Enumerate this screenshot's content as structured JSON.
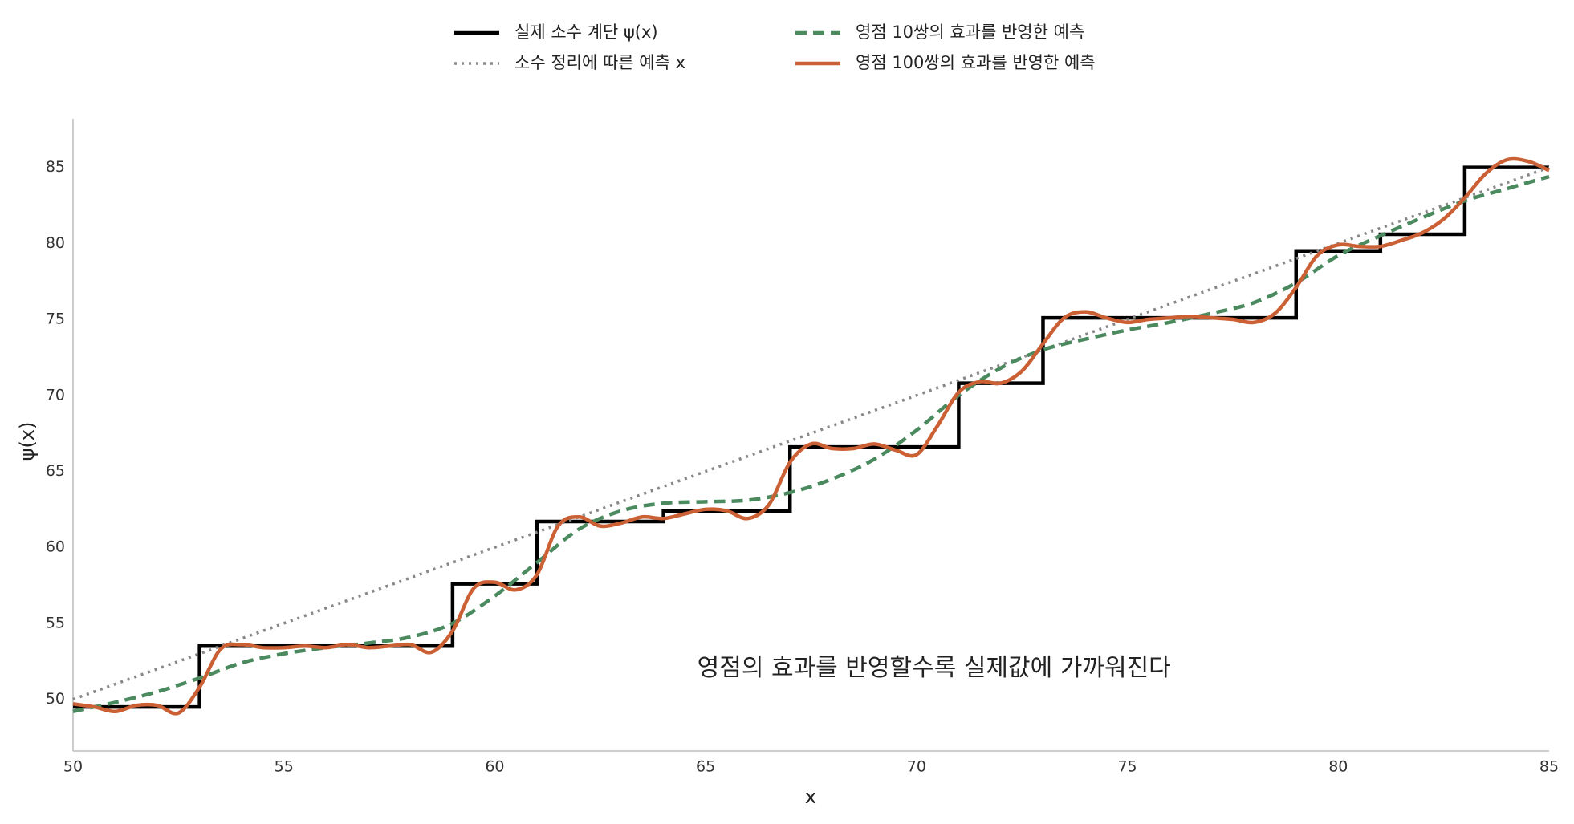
{
  "chart_data": {
    "type": "line",
    "xlabel": "x",
    "ylabel": "ψ(x)",
    "annotation": {
      "text": "영점의 효과를 반영할수록 실제값에 가까워진다",
      "x": 64.8,
      "y": 52
    },
    "xlim": [
      50,
      85
    ],
    "xticks": [
      50,
      55,
      60,
      65,
      70,
      75,
      80,
      85
    ],
    "ylim": [
      46.6,
      88.2
    ],
    "yticks": [
      50,
      55,
      60,
      65,
      70,
      75,
      80,
      85
    ],
    "grid": false,
    "legend": "top",
    "series": [
      {
        "name": "실제 소수 계단   ψ(x)",
        "color": "#000000",
        "linestyle": "solid",
        "drawstyle": "steps-post",
        "x": [
          50,
          53,
          59,
          61,
          64,
          67,
          71,
          73,
          79,
          81,
          83,
          85
        ],
        "values": [
          49.5,
          53.5,
          57.6,
          61.7,
          62.4,
          66.6,
          70.8,
          75.1,
          79.5,
          80.6,
          85.0,
          85.0
        ]
      },
      {
        "name": "소수 정리에 따른 예측   x",
        "color": "#888888",
        "linestyle": "dotted",
        "x": [
          50,
          85
        ],
        "values": [
          50,
          85
        ]
      },
      {
        "name": "영점 10쌍의 효과를 반영한 예측",
        "color": "#4a8a5e",
        "linestyle": "dashed",
        "x": [
          50,
          51,
          52,
          53,
          54,
          55,
          56,
          57,
          58,
          59,
          60,
          61,
          62,
          63,
          64,
          65,
          66,
          67,
          68,
          69,
          70,
          71,
          72,
          73,
          74,
          75,
          76,
          77,
          78,
          79,
          80,
          81,
          82,
          83,
          84,
          85
        ],
        "values": [
          49.2,
          49.8,
          50.5,
          51.4,
          52.4,
          53.0,
          53.4,
          53.7,
          54.1,
          55.0,
          56.8,
          59.0,
          61.2,
          62.4,
          62.9,
          63.0,
          63.1,
          63.6,
          64.5,
          65.8,
          67.7,
          70.0,
          71.8,
          73.0,
          73.7,
          74.3,
          74.8,
          75.4,
          76.1,
          77.4,
          79.2,
          80.5,
          81.7,
          82.8,
          83.6,
          84.4
        ]
      },
      {
        "name": "영점 100쌍의 효과를 반영한 예측",
        "color": "#cc6035",
        "linestyle": "solid",
        "x": [
          50,
          50.5,
          51,
          51.5,
          52,
          52.5,
          53,
          53.5,
          54,
          54.5,
          55,
          55.5,
          56,
          56.5,
          57,
          57.5,
          58,
          58.5,
          59,
          59.5,
          60,
          60.5,
          61,
          61.5,
          62,
          62.5,
          63,
          63.5,
          64,
          64.5,
          65,
          65.5,
          66,
          66.5,
          67,
          67.5,
          68,
          68.5,
          69,
          69.5,
          70,
          70.5,
          71,
          71.5,
          72,
          72.5,
          73,
          73.5,
          74,
          74.5,
          75,
          75.5,
          76,
          76.5,
          77,
          77.5,
          78,
          78.5,
          79,
          79.5,
          80,
          80.5,
          81,
          81.5,
          82,
          82.5,
          83,
          83.5,
          84,
          84.5,
          85
        ],
        "values": [
          49.7,
          49.5,
          49.2,
          49.6,
          49.6,
          49.1,
          50.8,
          53.3,
          53.6,
          53.4,
          53.4,
          53.5,
          53.4,
          53.6,
          53.4,
          53.5,
          53.6,
          53.1,
          54.5,
          57.3,
          57.7,
          57.2,
          58.2,
          61.4,
          62.0,
          61.4,
          61.6,
          62.0,
          61.9,
          62.2,
          62.5,
          62.4,
          61.9,
          62.8,
          65.6,
          66.8,
          66.5,
          66.5,
          66.8,
          66.4,
          66.1,
          68.0,
          70.2,
          70.9,
          70.8,
          71.6,
          73.4,
          75.1,
          75.5,
          75.1,
          74.8,
          75.0,
          75.1,
          75.2,
          75.1,
          75.0,
          74.8,
          75.4,
          77.1,
          79.2,
          79.9,
          79.8,
          79.8,
          80.2,
          80.7,
          81.6,
          83.0,
          84.6,
          85.5,
          85.4,
          84.8
        ]
      }
    ]
  }
}
